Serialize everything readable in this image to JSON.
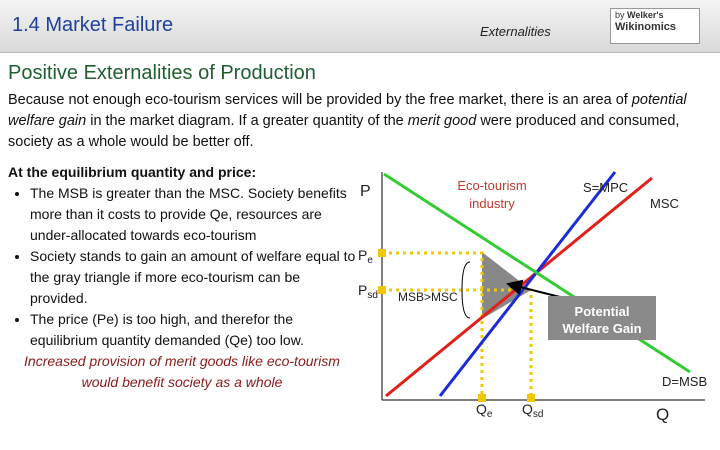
{
  "header": {
    "title_part1": "1.4 Market",
    "title_part2": "Failure",
    "topic": "Externalities",
    "logo_by": "by",
    "logo_name": "Welker's",
    "logo_site": "Wikinomics"
  },
  "title": "Positive Externalities of Production",
  "intro": {
    "parts": [
      "Because not enough eco-tourism services will be provided by the free market, there is an area of ",
      "potential welfare gain",
      " in the market diagram. If a greater quantity of the ",
      "merit good",
      " were produced and consumed, society as a whole would be better off."
    ]
  },
  "list": {
    "heading": "At the equilibrium quantity and price:",
    "bullets": [
      "The MSB is greater than the MSC. Society benefits more than it costs to provide Qe, resources are under-allocated towards eco-tourism",
      "Society stands to gain an amount of welfare equal to the gray triangle if more eco-tourism can be provided.",
      "The price (Pe) is too high, and therefor the equilibrium quantity demanded (Qe) too low."
    ],
    "conclusion": "Increased provision of merit goods like eco-tourism would benefit society as a whole"
  },
  "diagram": {
    "industry": "Eco-tourism industry",
    "supply": "S=MPC",
    "msc": "MSC",
    "demand": "D=MSB",
    "price_axis": "P",
    "quantity_axis": "Q",
    "pe": {
      "main": "P",
      "sub": "e"
    },
    "psd": {
      "main": "P",
      "sub": "sd"
    },
    "qe": {
      "main": "Q",
      "sub": "e"
    },
    "qsd": {
      "main": "Q",
      "sub": "sd"
    },
    "gap": "MSB>MSC",
    "welfare": "Potential Welfare Gain"
  }
}
